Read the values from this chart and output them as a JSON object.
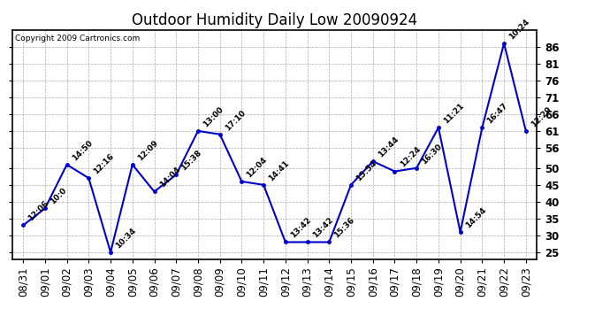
{
  "title": "Outdoor Humidity Daily Low 20090924",
  "copyright": "Copyright 2009 Cartronics.com",
  "x_labels": [
    "08/31",
    "09/01",
    "09/02",
    "09/03",
    "09/04",
    "09/05",
    "09/06",
    "09/07",
    "09/08",
    "09/09",
    "09/10",
    "09/11",
    "09/12",
    "09/13",
    "09/14",
    "09/15",
    "09/16",
    "09/17",
    "09/18",
    "09/19",
    "09/20",
    "09/21",
    "09/22",
    "09/23"
  ],
  "y_values": [
    33,
    38,
    51,
    47,
    25,
    51,
    43,
    48,
    61,
    60,
    46,
    45,
    28,
    28,
    28,
    45,
    52,
    49,
    50,
    62,
    31,
    62,
    87,
    61
  ],
  "point_labels": [
    "12:06",
    "10:0",
    "14:50",
    "12:16",
    "10:34",
    "12:09",
    "14:04",
    "15:38",
    "13:00",
    "17:10",
    "12:04",
    "14:41",
    "13:42",
    "13:42",
    "15:36",
    "15:54",
    "13:44",
    "12:24",
    "16:30",
    "11:21",
    "14:54",
    "16:47",
    "10:24",
    "12:29"
  ],
  "line_color": "#0000cc",
  "marker_color": "#0000cc",
  "bg_color": "#ffffff",
  "grid_color": "#aaaaaa",
  "ylim": [
    23,
    91
  ],
  "yticks": [
    25,
    30,
    35,
    40,
    45,
    50,
    56,
    61,
    66,
    71,
    76,
    81,
    86
  ],
  "title_fontsize": 12,
  "label_fontsize": 6.5,
  "tick_fontsize": 8.5
}
